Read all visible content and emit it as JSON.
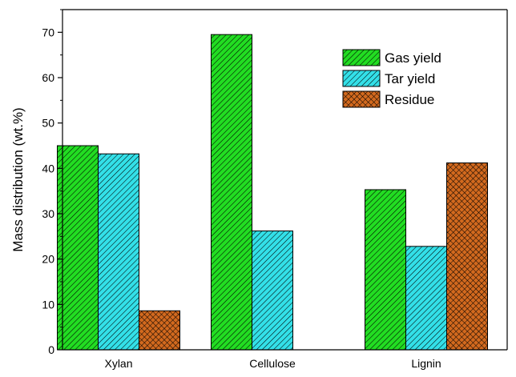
{
  "chart_data": {
    "type": "bar",
    "title": "",
    "xlabel": "",
    "ylabel": "Mass distribution (wt.%)",
    "ylim": [
      0,
      75
    ],
    "yticks": [
      0,
      10,
      20,
      30,
      40,
      50,
      60,
      70
    ],
    "categories": [
      "Xylan",
      "Cellulose",
      "Lignin"
    ],
    "series": [
      {
        "name": "Gas yield",
        "values": [
          45.0,
          69.5,
          35.3
        ],
        "color": "#22dd22",
        "pattern": "diagonal-hatch"
      },
      {
        "name": "Tar yield",
        "values": [
          43.2,
          26.2,
          22.8
        ],
        "color": "#33e0e8",
        "pattern": "diagonal-hatch"
      },
      {
        "name": "Residue",
        "values": [
          8.6,
          0,
          41.2
        ],
        "color": "#d2691e",
        "pattern": "cross-hatch"
      }
    ],
    "grid": false,
    "legend": "top-right"
  }
}
